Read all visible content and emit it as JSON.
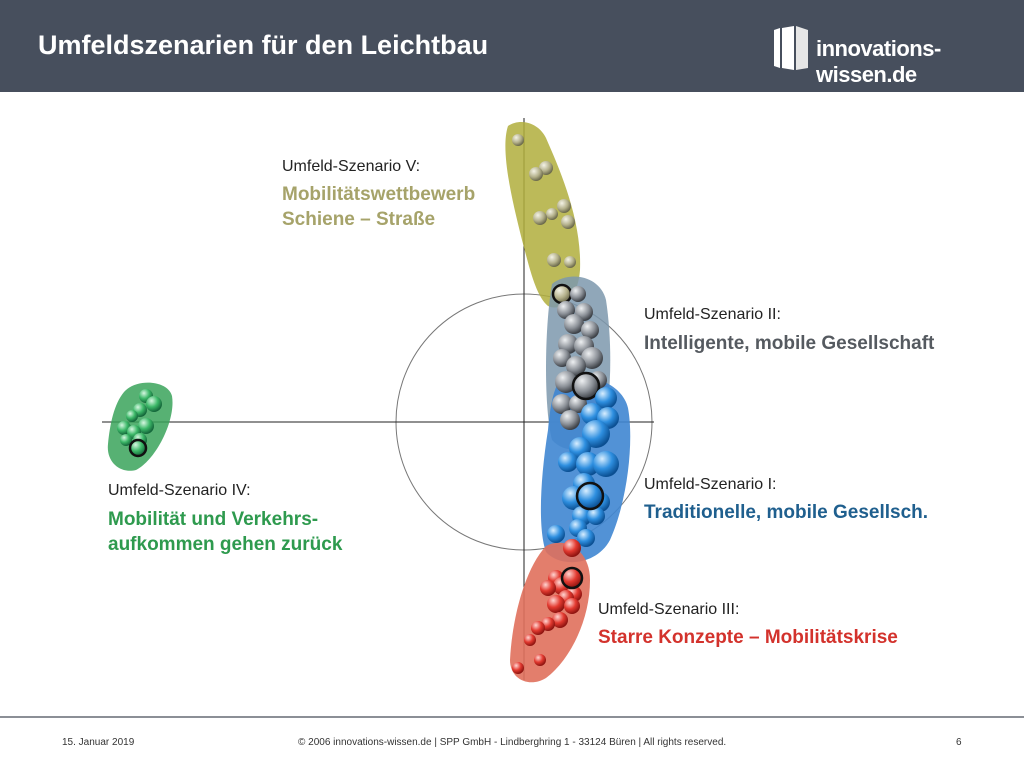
{
  "header": {
    "title": "Umfeldszenarien für den Leichtbau",
    "logo_text": "innovations-wissen.de"
  },
  "scenarios": [
    {
      "heading": "Umfeld-Szenario V:",
      "line1": "Mobilitätswettbewerb",
      "line2": "Schiene – Straße",
      "color": "#a6a36a"
    },
    {
      "heading": "Umfeld-Szenario II:",
      "line1": "Intelligente, mobile Gesellschaft",
      "color": "#555a60"
    },
    {
      "heading": "Umfeld-Szenario I:",
      "line1": "Traditionelle, mobile Gesellsch.",
      "color": "#1f5f8e"
    },
    {
      "heading": "Umfeld-Szenario III:",
      "line1": "Starre Konzepte – Mobilitätskrise",
      "color": "#d3322c"
    },
    {
      "heading": "Umfeld-Szenario IV:",
      "line1": "Mobilität und Verkehrs-",
      "line2": "aufkommen gehen zurück",
      "color": "#2e9a4e"
    }
  ],
  "footer": {
    "date": "15. Januar 2019",
    "copyright": "© 2006 innovations-wissen.de | SPP GmbH - Lindberghring 1 - 33124 Büren | All rights reserved.",
    "page": "6"
  }
}
